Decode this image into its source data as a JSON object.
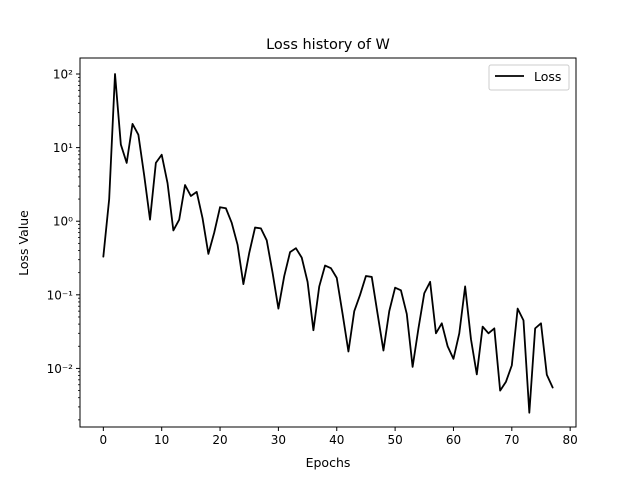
{
  "chart_data": {
    "type": "line",
    "title": "Loss history of W",
    "xlabel": "Epochs",
    "ylabel": "Loss Value",
    "yscale": "log",
    "xlim": [
      -4,
      81
    ],
    "ylim": [
      0.0016,
      165
    ],
    "xticks": [
      0,
      10,
      20,
      30,
      40,
      50,
      60,
      70,
      80
    ],
    "xtick_labels": [
      "0",
      "10",
      "20",
      "30",
      "40",
      "50",
      "60",
      "70",
      "80"
    ],
    "yticks": [
      0.01,
      0.1,
      1,
      10,
      100
    ],
    "ytick_labels": [
      "10⁻²",
      "10⁻¹",
      "10⁰",
      "10¹",
      "10²"
    ],
    "grid": false,
    "legend": {
      "location": "top-right",
      "entries": [
        "Loss"
      ]
    },
    "series": [
      {
        "name": "Loss",
        "color": "#000000",
        "x": [
          0,
          1,
          2,
          3,
          4,
          5,
          6,
          7,
          8,
          9,
          10,
          11,
          12,
          13,
          14,
          15,
          16,
          17,
          18,
          19,
          20,
          21,
          22,
          23,
          24,
          25,
          26,
          27,
          28,
          29,
          30,
          31,
          32,
          33,
          34,
          35,
          36,
          37,
          38,
          39,
          40,
          41,
          42,
          43,
          44,
          45,
          46,
          47,
          48,
          49,
          50,
          51,
          52,
          53,
          54,
          55,
          56,
          57,
          58,
          59,
          60,
          61,
          62,
          63,
          64,
          65,
          66,
          67,
          68,
          69,
          70,
          71,
          72,
          73,
          74,
          75,
          76,
          77
        ],
        "values": [
          0.33,
          2.0,
          100,
          11,
          6.2,
          21,
          15,
          4.2,
          1.05,
          6.2,
          8.0,
          3.3,
          0.75,
          1.05,
          3.1,
          2.2,
          2.5,
          1.1,
          0.36,
          0.7,
          1.55,
          1.5,
          0.95,
          0.48,
          0.14,
          0.37,
          0.82,
          0.8,
          0.55,
          0.2,
          0.065,
          0.18,
          0.38,
          0.43,
          0.32,
          0.15,
          0.033,
          0.13,
          0.25,
          0.23,
          0.17,
          0.055,
          0.017,
          0.06,
          0.1,
          0.18,
          0.175,
          0.055,
          0.0175,
          0.06,
          0.125,
          0.115,
          0.055,
          0.0105,
          0.035,
          0.105,
          0.15,
          0.03,
          0.041,
          0.02,
          0.0135,
          0.03,
          0.13,
          0.025,
          0.0083,
          0.037,
          0.03,
          0.035,
          0.005,
          0.0066,
          0.011,
          0.065,
          0.045,
          0.0025,
          0.035,
          0.041,
          0.0082,
          0.0055
        ]
      }
    ]
  }
}
